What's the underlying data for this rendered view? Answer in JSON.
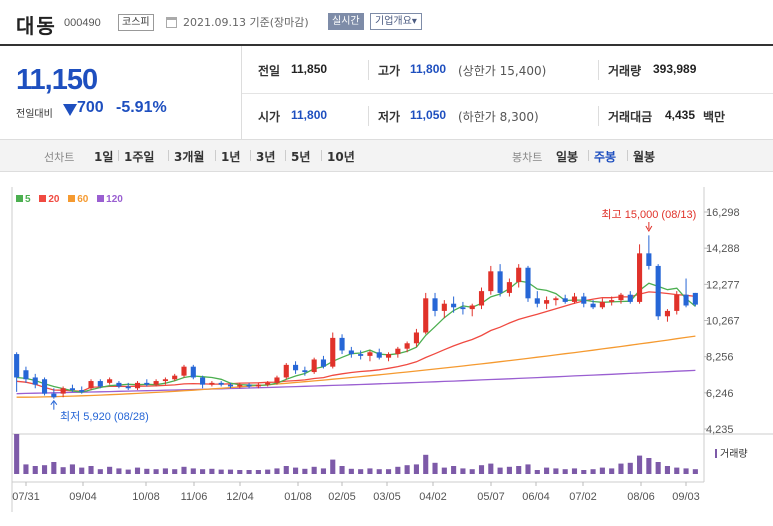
{
  "header": {
    "name": "대동",
    "code": "000490",
    "market_badge": "코스피",
    "date_text": "2021.09.13 기준(장마감)",
    "realtime_label": "실시간",
    "company_label": "기업개요",
    "company_caret": "▾"
  },
  "price": {
    "current": "11,150",
    "change_label": "전일대비",
    "change_value": "700",
    "change_rate": "-5.91%",
    "direction": "down"
  },
  "stats": {
    "prev": {
      "label": "전일",
      "value": "11,850"
    },
    "high": {
      "label": "고가",
      "value": "11,800",
      "sub": "(상한가 15,400)"
    },
    "volume": {
      "label": "거래량",
      "value": "393,989"
    },
    "open": {
      "label": "시가",
      "value": "11,800"
    },
    "low": {
      "label": "저가",
      "value": "11,050",
      "sub": "(하한가 8,300)"
    },
    "amount": {
      "label": "거래대금",
      "value": "4,435",
      "unit": "백만"
    }
  },
  "period_bar": {
    "line_label": "선차트",
    "line_periods": [
      "1일",
      "1주일",
      "3개월",
      "1년",
      "3년",
      "5년",
      "10년"
    ],
    "candle_label": "봉차트",
    "candle_periods": [
      "일봉",
      "주봉",
      "월봉"
    ],
    "active_candle": "주봉"
  },
  "colors": {
    "up": "#e0322a",
    "down": "#2666d6",
    "ma5": "#4caf50",
    "ma20": "#f04a41",
    "ma60": "#f59a30",
    "ma120": "#9a5fd1",
    "volume": "#7d5aa8"
  },
  "chart_data": {
    "type": "candlestick",
    "legend": [
      "5",
      "20",
      "60",
      "120"
    ],
    "y_ticks": [
      "16,298",
      "14,288",
      "12,277",
      "10,267",
      "8,256",
      "6,246",
      "4,235"
    ],
    "ylim": [
      4235,
      16298
    ],
    "x_ticks": [
      "07/31",
      "09/04",
      "10/08",
      "11/06",
      "12/04",
      "01/08",
      "02/05",
      "03/05",
      "04/02",
      "05/07",
      "06/04",
      "07/02",
      "08/06",
      "09/03"
    ],
    "volume_label": "거래량",
    "max_annotation": "최고 15,000 (08/13)",
    "min_annotation": "최저 5,920 (08/28)",
    "ohlc": [
      [
        8400,
        8500,
        6300,
        7100
      ],
      [
        7500,
        7700,
        6800,
        7000
      ],
      [
        7100,
        7300,
        6500,
        6700
      ],
      [
        7000,
        7100,
        6100,
        6200
      ],
      [
        6200,
        6500,
        5920,
        6000
      ],
      [
        6200,
        6600,
        6000,
        6500
      ],
      [
        6500,
        6700,
        6300,
        6400
      ],
      [
        6400,
        6600,
        6200,
        6300
      ],
      [
        6500,
        7000,
        6400,
        6900
      ],
      [
        6900,
        7000,
        6500,
        6600
      ],
      [
        6800,
        7100,
        6700,
        7000
      ],
      [
        6800,
        6900,
        6500,
        6600
      ],
      [
        6600,
        6800,
        6400,
        6500
      ],
      [
        6500,
        6900,
        6400,
        6800
      ],
      [
        6800,
        7000,
        6600,
        6700
      ],
      [
        6700,
        7000,
        6600,
        6900
      ],
      [
        6900,
        7100,
        6700,
        7000
      ],
      [
        7000,
        7300,
        6900,
        7200
      ],
      [
        7200,
        7800,
        7100,
        7700
      ],
      [
        7700,
        7800,
        7000,
        7100
      ],
      [
        7100,
        7200,
        6500,
        6700
      ],
      [
        6700,
        6900,
        6600,
        6800
      ],
      [
        6800,
        6900,
        6600,
        6700
      ],
      [
        6700,
        6800,
        6500,
        6600
      ],
      [
        6600,
        6800,
        6500,
        6700
      ],
      [
        6700,
        6800,
        6500,
        6600
      ],
      [
        6600,
        6800,
        6500,
        6700
      ],
      [
        6700,
        6900,
        6600,
        6800
      ],
      [
        6800,
        7200,
        6700,
        7100
      ],
      [
        7100,
        7900,
        7000,
        7800
      ],
      [
        7800,
        8000,
        7300,
        7500
      ],
      [
        7500,
        7700,
        7200,
        7400
      ],
      [
        7400,
        8200,
        7300,
        8100
      ],
      [
        8100,
        8300,
        7600,
        7700
      ],
      [
        7700,
        9600,
        7600,
        9300
      ],
      [
        9300,
        9500,
        8400,
        8600
      ],
      [
        8600,
        8800,
        8200,
        8400
      ],
      [
        8400,
        8600,
        8100,
        8300
      ],
      [
        8300,
        8600,
        8000,
        8500
      ],
      [
        8500,
        8700,
        8100,
        8200
      ],
      [
        8200,
        8500,
        8000,
        8400
      ],
      [
        8400,
        8800,
        8200,
        8700
      ],
      [
        8700,
        9100,
        8500,
        9000
      ],
      [
        9000,
        9800,
        8800,
        9600
      ],
      [
        9600,
        11800,
        9500,
        11500
      ],
      [
        11500,
        11800,
        10500,
        10800
      ],
      [
        10800,
        11400,
        10400,
        11200
      ],
      [
        11200,
        11600,
        10700,
        11000
      ],
      [
        11000,
        11300,
        10600,
        10900
      ],
      [
        10900,
        11200,
        10500,
        11100
      ],
      [
        11100,
        12100,
        10900,
        11900
      ],
      [
        11900,
        13300,
        11700,
        13000
      ],
      [
        13000,
        13400,
        11600,
        11800
      ],
      [
        11800,
        12600,
        11600,
        12400
      ],
      [
        12400,
        13400,
        12100,
        13200
      ],
      [
        13200,
        13300,
        11300,
        11500
      ],
      [
        11500,
        11900,
        11000,
        11200
      ],
      [
        11200,
        11600,
        10900,
        11400
      ],
      [
        11400,
        11600,
        11100,
        11500
      ],
      [
        11500,
        11700,
        11200,
        11300
      ],
      [
        11300,
        11800,
        11200,
        11600
      ],
      [
        11600,
        11800,
        11000,
        11200
      ],
      [
        11200,
        11400,
        10900,
        11000
      ],
      [
        11000,
        11500,
        10900,
        11300
      ],
      [
        11300,
        11600,
        11100,
        11400
      ],
      [
        11400,
        11800,
        11200,
        11700
      ],
      [
        11700,
        11900,
        11200,
        11300
      ],
      [
        11300,
        14500,
        11200,
        14000
      ],
      [
        14000,
        15000,
        13100,
        13300
      ],
      [
        13300,
        13400,
        10300,
        10500
      ],
      [
        10500,
        10900,
        10200,
        10800
      ],
      [
        10800,
        11900,
        10600,
        11700
      ],
      [
        11700,
        12600,
        11000,
        11100
      ],
      [
        11800,
        11800,
        11050,
        11150
      ]
    ],
    "volume": [
      100,
      24,
      20,
      22,
      30,
      17,
      24,
      16,
      20,
      12,
      18,
      14,
      11,
      16,
      13,
      12,
      14,
      12,
      18,
      14,
      12,
      13,
      11,
      11,
      10,
      10,
      10,
      11,
      14,
      20,
      16,
      13,
      18,
      14,
      36,
      20,
      13,
      12,
      14,
      12,
      12,
      18,
      22,
      24,
      48,
      28,
      16,
      20,
      14,
      12,
      22,
      26,
      16,
      18,
      20,
      24,
      10,
      16,
      14,
      12,
      14,
      10,
      12,
      16,
      14,
      26,
      28,
      46,
      40,
      30,
      20,
      16,
      14,
      12
    ]
  }
}
